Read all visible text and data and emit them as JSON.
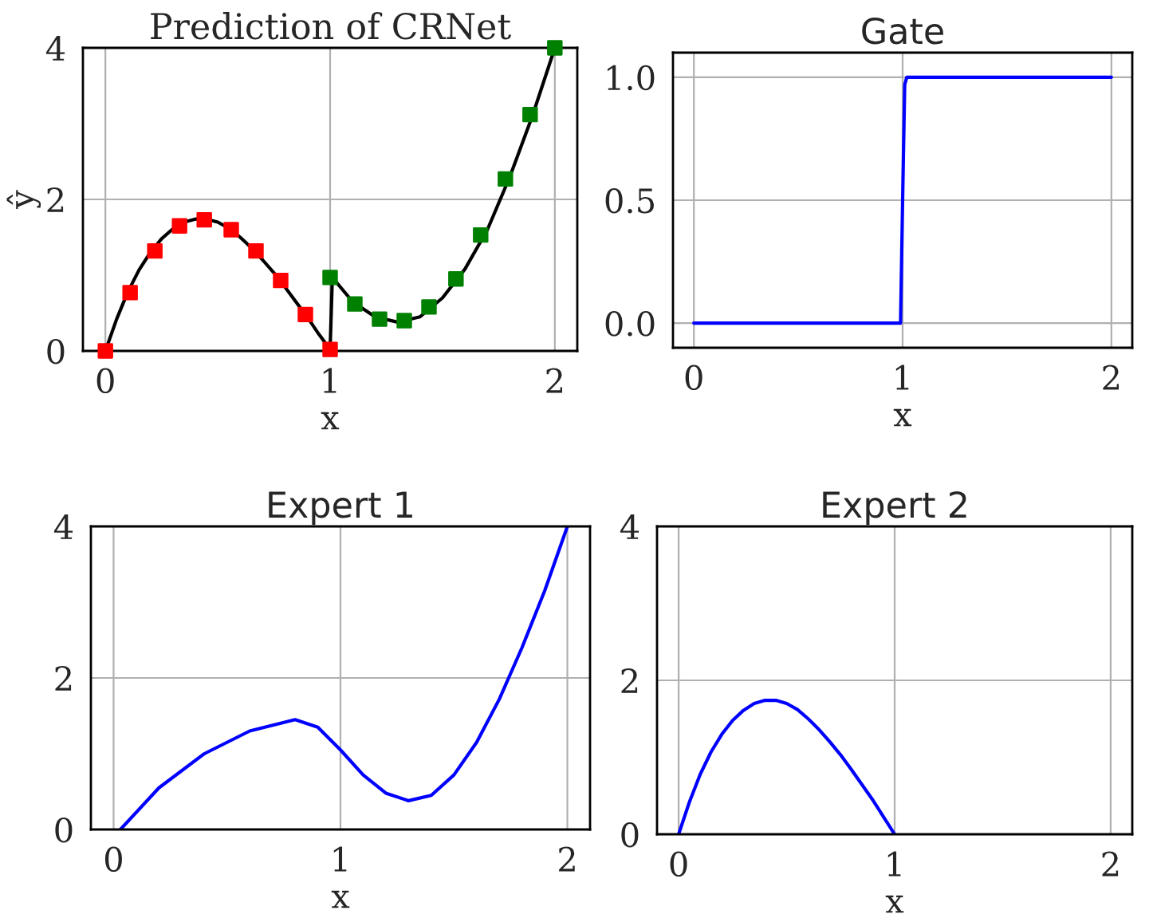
{
  "chart_data": [
    {
      "type": "line",
      "title": "Prediction of CRNet",
      "xlabel": "x",
      "ylabel": "ŷ",
      "xlim": [
        -0.1,
        2.1
      ],
      "ylim": [
        0,
        4
      ],
      "xticks": [
        0,
        1,
        2
      ],
      "yticks": [
        0,
        2,
        4
      ],
      "grid": true,
      "legend": false,
      "series": [
        {
          "color": "#000000",
          "marker": "none",
          "x": [
            0,
            0.05,
            0.1,
            0.15,
            0.2,
            0.25,
            0.3,
            0.35,
            0.4,
            0.45,
            0.5,
            0.55,
            0.6,
            0.65,
            0.7,
            0.75,
            0.8,
            0.85,
            0.9,
            0.95,
            1.0,
            1.01,
            1.1,
            1.2,
            1.3,
            1.4,
            1.5,
            1.6,
            1.7,
            1.8,
            1.9,
            2.0
          ],
          "values": [
            0,
            0.42,
            0.78,
            1.07,
            1.3,
            1.48,
            1.61,
            1.7,
            1.74,
            1.74,
            1.7,
            1.62,
            1.5,
            1.36,
            1.2,
            1.03,
            0.84,
            0.64,
            0.44,
            0.22,
            0.02,
            0.97,
            0.65,
            0.45,
            0.38,
            0.45,
            0.7,
            1.08,
            1.6,
            2.3,
            3.1,
            4.0
          ]
        },
        {
          "type": "scatter",
          "color": "#ff0000",
          "marker": "square",
          "x": [
            0,
            0.11,
            0.22,
            0.33,
            0.44,
            0.56,
            0.67,
            0.78,
            0.89,
            1.0
          ],
          "values": [
            0,
            0.77,
            1.32,
            1.65,
            1.73,
            1.6,
            1.32,
            0.93,
            0.48,
            0.02
          ]
        },
        {
          "type": "scatter",
          "color": "#008000",
          "marker": "square",
          "x": [
            1.0,
            1.11,
            1.22,
            1.33,
            1.44,
            1.56,
            1.67,
            1.78,
            1.89,
            2.0
          ],
          "values": [
            0.97,
            0.62,
            0.42,
            0.4,
            0.58,
            0.95,
            1.53,
            2.27,
            3.12,
            4.0
          ]
        }
      ]
    },
    {
      "type": "line",
      "title": "Gate",
      "xlabel": "x",
      "xlim": [
        -0.1,
        2.1
      ],
      "ylim": [
        -0.1,
        1.1
      ],
      "xticks": [
        0,
        1,
        2
      ],
      "yticks": [
        {
          "value": 0,
          "label": "0.0"
        },
        0.5,
        {
          "value": 1,
          "label": "1.0"
        }
      ],
      "grid": true,
      "legend": false,
      "series": [
        {
          "color": "#0000ff",
          "marker": "none",
          "x": [
            0,
            0.99,
            1.0,
            1.01,
            1.02,
            2.0
          ],
          "values": [
            0,
            0,
            0.5,
            0.97,
            1,
            1
          ]
        }
      ]
    },
    {
      "type": "line",
      "title": "Expert 1",
      "xlabel": "x",
      "xlim": [
        -0.1,
        2.1
      ],
      "ylim": [
        0,
        4
      ],
      "xticks": [
        0,
        1,
        2
      ],
      "yticks": [
        0,
        2,
        4
      ],
      "grid": true,
      "legend": false,
      "series": [
        {
          "color": "#0000ff",
          "marker": "none",
          "x": [
            0.03,
            0.2,
            0.4,
            0.6,
            0.8,
            0.9,
            1.0,
            1.1,
            1.2,
            1.3,
            1.4,
            1.5,
            1.6,
            1.7,
            1.8,
            1.9,
            2.0
          ],
          "values": [
            0,
            0.55,
            1.0,
            1.3,
            1.45,
            1.35,
            1.05,
            0.72,
            0.48,
            0.38,
            0.45,
            0.72,
            1.15,
            1.72,
            2.4,
            3.15,
            4.0
          ]
        }
      ]
    },
    {
      "type": "line",
      "title": "Expert 2",
      "xlabel": "x",
      "xlim": [
        -0.1,
        2.1
      ],
      "ylim": [
        0,
        4
      ],
      "xticks": [
        0,
        1,
        2
      ],
      "yticks": [
        0,
        2,
        4
      ],
      "grid": true,
      "legend": false,
      "series": [
        {
          "color": "#0000ff",
          "marker": "none",
          "x": [
            0,
            0.05,
            0.1,
            0.15,
            0.2,
            0.25,
            0.3,
            0.35,
            0.4,
            0.45,
            0.5,
            0.55,
            0.6,
            0.65,
            0.7,
            0.75,
            0.8,
            0.85,
            0.9,
            0.95,
            1.0
          ],
          "values": [
            0,
            0.42,
            0.78,
            1.07,
            1.3,
            1.48,
            1.61,
            1.7,
            1.74,
            1.74,
            1.7,
            1.62,
            1.5,
            1.36,
            1.2,
            1.03,
            0.84,
            0.64,
            0.44,
            0.22,
            0.0
          ]
        }
      ]
    }
  ]
}
